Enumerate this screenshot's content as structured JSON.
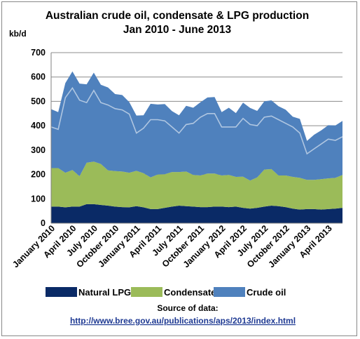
{
  "chart_data": {
    "type": "area",
    "stacked": true,
    "title_line1": "Australian crude oil, condensate & LPG production",
    "title_line2": "Jan 2010 - June 2013",
    "ylabel": "kb/d",
    "ylim": [
      0,
      700
    ],
    "yticks": [
      "0",
      "100",
      "200",
      "300",
      "400",
      "500",
      "600",
      "700"
    ],
    "grid": true,
    "legend_position": "bottom",
    "xtick_labels": [
      {
        "index": 0,
        "label": "January 2010"
      },
      {
        "index": 3,
        "label": "April 2010"
      },
      {
        "index": 6,
        "label": "July 2010"
      },
      {
        "index": 9,
        "label": "October 2010"
      },
      {
        "index": 12,
        "label": "January 2011"
      },
      {
        "index": 15,
        "label": "April 2011"
      },
      {
        "index": 18,
        "label": "July 2011"
      },
      {
        "index": 21,
        "label": "October 2011"
      },
      {
        "index": 24,
        "label": "January 2012"
      },
      {
        "index": 27,
        "label": "April 2012"
      },
      {
        "index": 30,
        "label": "July 2012"
      },
      {
        "index": 33,
        "label": "October 2012"
      },
      {
        "index": 36,
        "label": "January 2013"
      },
      {
        "index": 39,
        "label": "April 2013"
      }
    ],
    "months": 42,
    "series": [
      {
        "name": "Natural LPG",
        "color": "#0a2a66",
        "values": [
          68,
          68,
          65,
          68,
          68,
          78,
          78,
          75,
          72,
          68,
          66,
          65,
          70,
          65,
          58,
          58,
          63,
          68,
          72,
          70,
          68,
          66,
          66,
          68,
          68,
          66,
          68,
          63,
          60,
          63,
          68,
          72,
          70,
          66,
          60,
          56,
          58,
          58,
          56,
          58,
          60,
          63
        ]
      },
      {
        "name": "Condensate",
        "color": "#9bbb59",
        "values": [
          158,
          158,
          142,
          150,
          125,
          170,
          175,
          168,
          145,
          146,
          146,
          142,
          145,
          140,
          130,
          142,
          138,
          142,
          138,
          142,
          130,
          130,
          138,
          136,
          128,
          132,
          122,
          128,
          115,
          125,
          152,
          150,
          126,
          130,
          130,
          130,
          120,
          120,
          125,
          126,
          126,
          135
        ]
      },
      {
        "name": "Crude oil",
        "color": "#4f81bd",
        "values": [
          242,
          230,
          368,
          405,
          380,
          322,
          365,
          325,
          340,
          316,
          314,
          290,
          227,
          238,
          302,
          287,
          288,
          250,
          233,
          270,
          276,
          300,
          312,
          314,
          260,
          276,
          262,
          304,
          298,
          273,
          280,
          282,
          284,
          270,
          247,
          242,
          160,
          185,
          200,
          218,
          215,
          222
        ]
      }
    ],
    "crude_marker_line": {
      "color": "#4f81bd",
      "values": [
        395,
        385,
        515,
        555,
        505,
        495,
        545,
        495,
        485,
        470,
        465,
        448,
        370,
        390,
        425,
        425,
        420,
        395,
        370,
        405,
        410,
        435,
        450,
        450,
        395,
        395,
        395,
        430,
        405,
        400,
        435,
        440,
        425,
        410,
        395,
        370,
        285,
        305,
        325,
        345,
        340,
        355
      ]
    }
  },
  "source": {
    "label": "Source of data:",
    "url": "http://www.bree.gov.au/publications/aps/2013/index.html"
  }
}
